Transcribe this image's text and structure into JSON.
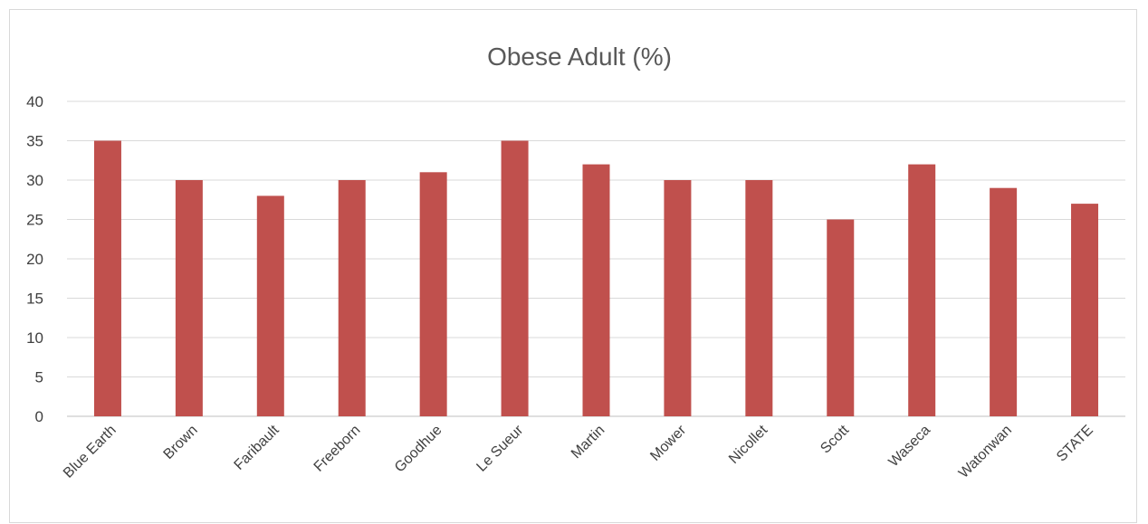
{
  "chart_data": {
    "type": "bar",
    "title": "Obese Adult (%)",
    "xlabel": "",
    "ylabel": "",
    "categories": [
      "Blue Earth",
      "Brown",
      "Faribault",
      "Freeborn",
      "Goodhue",
      "Le Sueur",
      "Martin",
      "Mower",
      "Nicollet",
      "Scott",
      "Waseca",
      "Watonwan",
      "STATE"
    ],
    "values": [
      35,
      30,
      28,
      30,
      31,
      35,
      32,
      30,
      30,
      25,
      32,
      29,
      27
    ],
    "ylim": [
      0,
      40
    ],
    "yticks": [
      0,
      5,
      10,
      15,
      20,
      25,
      30,
      35,
      40
    ],
    "grid": true,
    "legend": "none",
    "colors": {
      "bar": "#c0504d",
      "grid": "#d9d9d9",
      "text": "#404040",
      "title": "#595959"
    }
  }
}
